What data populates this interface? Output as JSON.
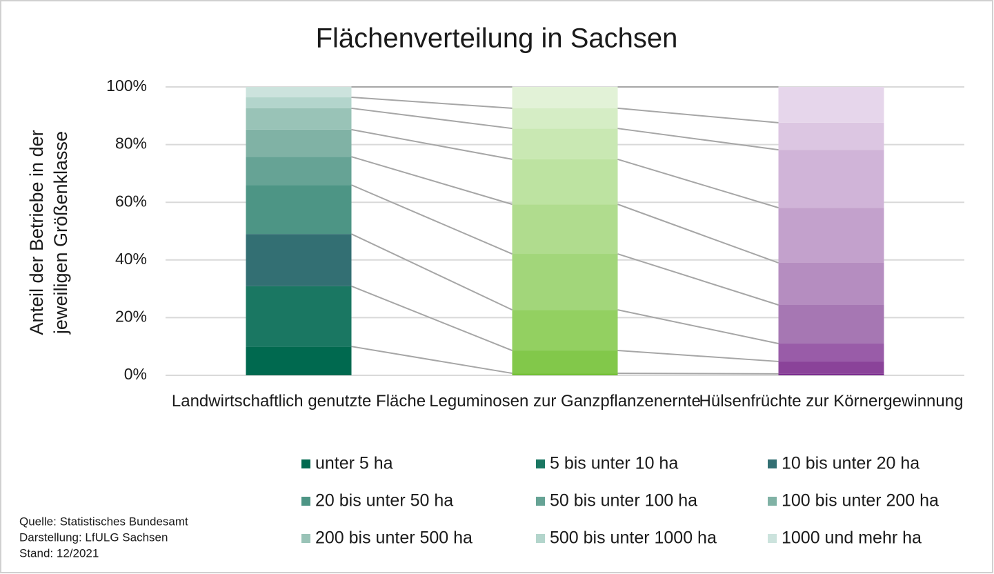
{
  "chart_data": {
    "type": "stacked_bar",
    "title": "Flächenverteilung in Sachsen",
    "ylabel": [
      "Anteil der Betriebe in der",
      "jeweiligen Größenklasse"
    ],
    "categories": [
      "Landwirtschaftlich genutzte Fläche",
      "Leguminosen zur Ganzpflanzenernte",
      "Hülsenfrüchte zur Körnergewinnung"
    ],
    "series": [
      {
        "name": "unter 5 ha",
        "colors": [
          "#00694f",
          "#72bf35",
          "#7b2d8f"
        ],
        "values": [
          10.0,
          0.7,
          0.5
        ]
      },
      {
        "name": "5 bis unter 10 ha",
        "colors": [
          "#1a7762",
          "#82c84a",
          "#8a4399"
        ],
        "values": [
          20.9,
          7.9,
          4.3
        ]
      },
      {
        "name": "10 bis unter 20 ha",
        "colors": [
          "#336f73",
          "#93d061",
          "#995ca8"
        ],
        "values": [
          18.1,
          14.1,
          6.2
        ]
      },
      {
        "name": "20 bis unter 50 ha",
        "colors": [
          "#4d9585",
          "#a2d67a",
          "#a677b3"
        ],
        "values": [
          17.0,
          19.4,
          13.4
        ]
      },
      {
        "name": "50 bis unter 100 ha",
        "colors": [
          "#66a395",
          "#b0dc8e",
          "#b58dc0"
        ],
        "values": [
          9.8,
          17.2,
          14.6
        ]
      },
      {
        "name": "100 bis unter 200 ha",
        "colors": [
          "#80b2a5",
          "#bde3a1",
          "#c3a1cc"
        ],
        "values": [
          9.4,
          15.6,
          19.1
        ]
      },
      {
        "name": "200 bis unter 500 ha",
        "colors": [
          "#99c3b7",
          "#c9e8b3",
          "#d0b4d8"
        ],
        "values": [
          7.4,
          10.7,
          20.1
        ]
      },
      {
        "name": "500 bis unter 1000 ha",
        "colors": [
          "#b3d5cc",
          "#d5edc5",
          "#dcc6e2"
        ],
        "values": [
          3.8,
          7.0,
          9.4
        ]
      },
      {
        "name": "1000 und mehr ha",
        "colors": [
          "#cce3dd",
          "#e2f2d7",
          "#e6d6eb"
        ],
        "values": [
          3.6,
          7.4,
          12.4
        ]
      }
    ],
    "ylim": [
      0,
      100
    ],
    "yticks": [
      {
        "value": 0,
        "label": "0%"
      },
      {
        "value": 20,
        "label": "20%"
      },
      {
        "value": 40,
        "label": "40%"
      },
      {
        "value": 60,
        "label": "60%"
      },
      {
        "value": 80,
        "label": "80%"
      },
      {
        "value": 100,
        "label": "100%"
      }
    ],
    "grid": true,
    "source": [
      "Quelle: Statistisches Bundesamt",
      "Darstellung: LfULG Sachsen",
      "Stand: 12/2021"
    ]
  }
}
